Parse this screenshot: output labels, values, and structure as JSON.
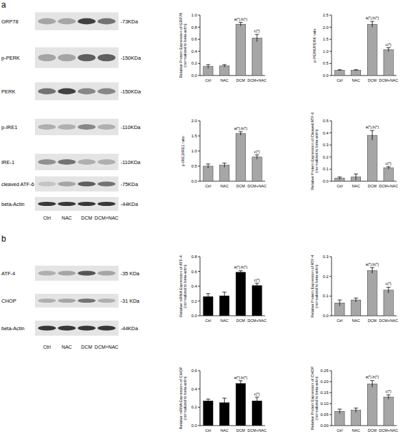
{
  "panels": [
    {
      "label": "a",
      "lanes": [
        "Ctrl",
        "NAC",
        "DCM",
        "DCM+NAC"
      ],
      "rows": [
        {
          "name": "GRP78",
          "size": "-73KDa"
        },
        {
          "name": "p-PERK",
          "size": "-150KDa"
        },
        {
          "name": "PERK",
          "size": "-150KDa"
        },
        {
          "name": "p-IRE1",
          "size": "-110KDa"
        },
        {
          "name": "IRE-1",
          "size": "-110KDa"
        },
        {
          "name": "cleaved ATF-6",
          "size": "-75KDa"
        },
        {
          "name": "beta-Actin",
          "size": "-44KDa"
        }
      ]
    },
    {
      "label": "b",
      "lanes": [
        "Ctrl",
        "NAC",
        "DCM",
        "DCM+NAC"
      ],
      "rows": [
        {
          "name": "ATF-4",
          "size": "-35 KDa"
        },
        {
          "name": "CHOP",
          "size": "-31 KDa"
        },
        {
          "name": "beta-Actin",
          "size": "-44KDa"
        }
      ]
    }
  ],
  "chart_data": [
    {
      "type": "bar",
      "y_label": "Relative Protein Expression of GRP78 (normalized to beta-actin)",
      "categories": [
        "Ctrl",
        "NAC",
        "DCM",
        "DCM+NAC"
      ],
      "values": [
        0.15,
        0.16,
        0.85,
        0.62
      ],
      "errors": [
        0.03,
        0.02,
        0.03,
        0.06
      ],
      "annotations": [
        null,
        null,
        "a(*),b(*)",
        "c(*)"
      ],
      "color": "#a6a6a6",
      "ylim": [
        0,
        1
      ],
      "yticks": [
        {
          "value": 0,
          "label": "0.0"
        },
        0.2,
        0.4,
        0.6,
        0.8,
        {
          "value": 1,
          "label": "1.0"
        }
      ]
    },
    {
      "type": "bar",
      "y_label": "p-PERK/PERK ratio",
      "categories": [
        "Ctrl",
        "NAC",
        "DCM",
        "DCM+NAC"
      ],
      "values": [
        0.22,
        0.22,
        2.12,
        1.07
      ],
      "errors": [
        0.02,
        0.02,
        0.12,
        0.08
      ],
      "annotations": [
        null,
        null,
        "a(*),b(*)",
        "c(*)"
      ],
      "color": "#a6a6a6",
      "ylim": [
        0,
        2.5
      ],
      "yticks": [
        {
          "value": 0,
          "label": "0.0"
        },
        0.5,
        {
          "value": 1,
          "label": "1.0"
        },
        1.5,
        {
          "value": 2,
          "label": "2.0"
        },
        2.5
      ]
    },
    {
      "type": "bar",
      "y_label": "p-IRE1/IRE1 ratio",
      "categories": [
        "Ctrl",
        "NAC",
        "DCM",
        "DCM+NAC"
      ],
      "values": [
        0.5,
        0.53,
        1.58,
        0.8
      ],
      "errors": [
        0.07,
        0.07,
        0.06,
        0.07
      ],
      "annotations": [
        null,
        null,
        "a(*),b(*)",
        "c(*)"
      ],
      "color": "#a6a6a6",
      "ylim": [
        0,
        2
      ],
      "yticks": [
        {
          "value": 0,
          "label": "0.0"
        },
        0.5,
        {
          "value": 1,
          "label": "1.0"
        },
        1.5,
        {
          "value": 2,
          "label": "2.0"
        }
      ]
    },
    {
      "type": "bar",
      "y_label": "Relative Protein Expression of Cleaved ATF-6 (normalized to beta-actin)",
      "categories": [
        "Ctrl",
        "NAC",
        "DCM",
        "DCM+NAC"
      ],
      "values": [
        0.025,
        0.035,
        0.38,
        0.11
      ],
      "errors": [
        0.01,
        0.025,
        0.04,
        0.01
      ],
      "annotations": [
        null,
        null,
        "a(*),b(*)",
        "c(*)"
      ],
      "color": "#a6a6a6",
      "ylim": [
        0,
        0.5
      ],
      "yticks": [
        {
          "value": 0,
          "label": "0.0"
        },
        0.1,
        0.2,
        0.3,
        0.4,
        0.5
      ]
    },
    {
      "type": "bar",
      "y_label": "Relative mRNA Expression of ATF-4 (normalized to beta-actin)",
      "categories": [
        "Ctrl",
        "NAC",
        "DCM",
        "DCM+NAC"
      ],
      "values": [
        0.26,
        0.27,
        0.59,
        0.41
      ],
      "errors": [
        0.04,
        0.05,
        0.02,
        0.03
      ],
      "annotations": [
        null,
        null,
        "a(*),b(*)",
        "c(*)"
      ],
      "color": "#000000",
      "ylim": [
        0,
        0.8
      ],
      "yticks": [
        {
          "value": 0,
          "label": "0.0"
        },
        0.2,
        0.4,
        0.6,
        0.8
      ]
    },
    {
      "type": "bar",
      "y_label": "Relative Protein Expression of ATF-4 (normalized to beta-actin)",
      "categories": [
        "Ctrl",
        "NAC",
        "DCM",
        "DCM+NAC"
      ],
      "values": [
        0.065,
        0.08,
        0.23,
        0.13
      ],
      "errors": [
        0.015,
        0.01,
        0.015,
        0.015
      ],
      "annotations": [
        null,
        null,
        "a(*),b(*)",
        "c(*)"
      ],
      "color": "#a6a6a6",
      "ylim": [
        0,
        0.3
      ],
      "yticks": [
        {
          "value": 0,
          "label": "0.0"
        },
        0.1,
        0.2,
        0.3
      ]
    },
    {
      "type": "bar",
      "y_label": "Relative mRNA Expression of CHOP (normalized to beta-actin)",
      "categories": [
        "Ctrl",
        "NAC",
        "DCM",
        "DCM+NAC"
      ],
      "values": [
        0.27,
        0.25,
        0.46,
        0.27
      ],
      "errors": [
        0.02,
        0.05,
        0.03,
        0.04
      ],
      "annotations": [
        null,
        null,
        "a(*),b(*)",
        "c(*)"
      ],
      "color": "#000000",
      "ylim": [
        0,
        0.6
      ],
      "yticks": [
        {
          "value": 0,
          "label": "0.0"
        },
        0.2,
        0.4,
        0.6
      ]
    },
    {
      "type": "bar",
      "y_label": "Relative Protein Expression of CHOP (normalized to beta-actin)",
      "categories": [
        "Ctrl",
        "NAC",
        "DCM",
        "DCM+NAC"
      ],
      "values": [
        0.065,
        0.07,
        0.19,
        0.13
      ],
      "errors": [
        0.01,
        0.01,
        0.015,
        0.01
      ],
      "annotations": [
        null,
        null,
        "a(*),b(*)",
        "c(*)"
      ],
      "color": "#a6a6a6",
      "ylim": [
        0,
        0.25
      ],
      "yticks": [
        {
          "value": 0,
          "label": "0.00"
        },
        0.05,
        {
          "value": 0.1,
          "label": "0.10"
        },
        0.15,
        {
          "value": 0.2,
          "label": "0.20"
        },
        0.25
      ]
    }
  ]
}
